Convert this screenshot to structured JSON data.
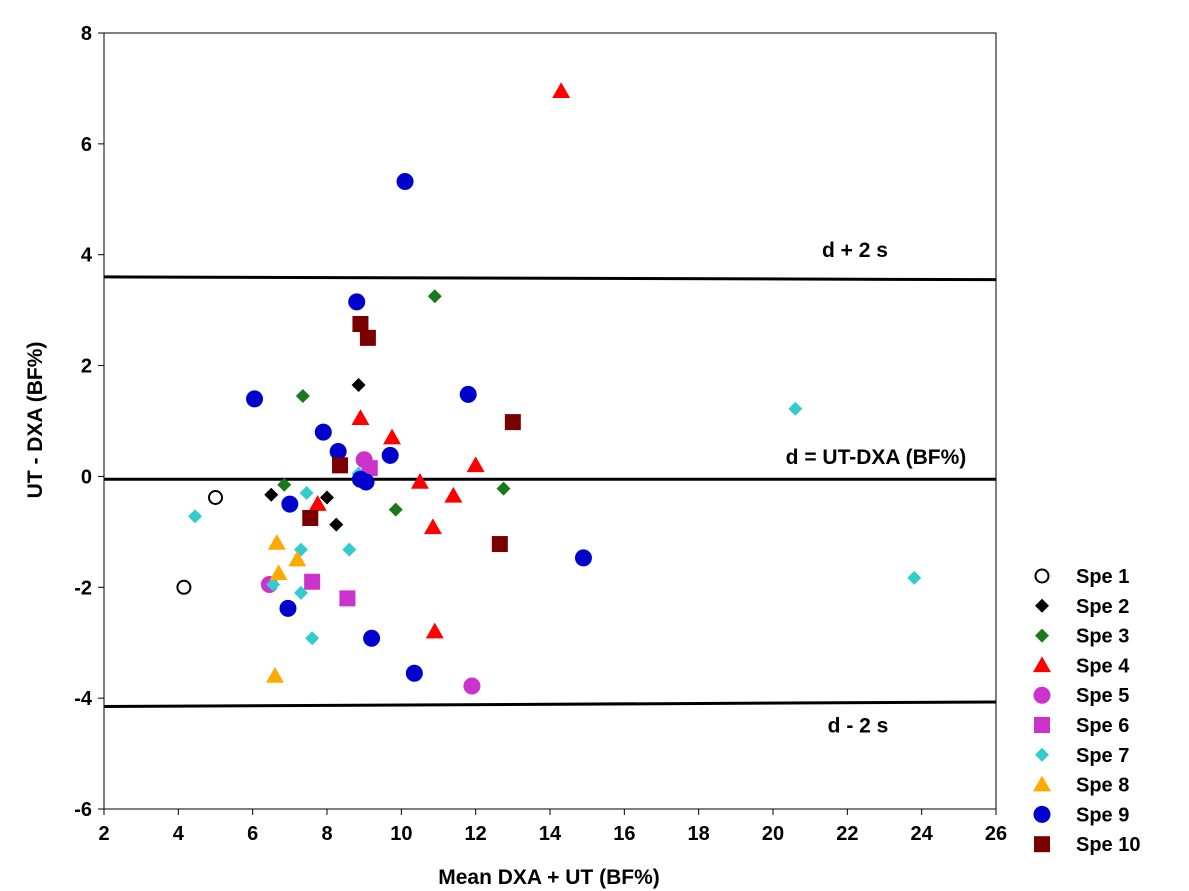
{
  "chart_data": {
    "type": "scatter",
    "title": "",
    "xlabel": "Mean DXA + UT (BF%)",
    "ylabel": "UT - DXA (BF%)",
    "xlim": [
      2,
      26
    ],
    "ylim": [
      -6,
      8
    ],
    "xticks": [
      2,
      4,
      6,
      8,
      10,
      12,
      14,
      16,
      18,
      20,
      22,
      24,
      26
    ],
    "yticks": [
      -6,
      -4,
      -2,
      0,
      2,
      4,
      6,
      8
    ],
    "grid": false,
    "legend_position": "bottom-right, outside plot",
    "reference_lines": [
      {
        "label": "d + 2 s",
        "x": [
          2,
          26
        ],
        "y": [
          3.6,
          3.55
        ]
      },
      {
        "label": "d = UT-DXA (BF%)",
        "x": [
          2,
          26
        ],
        "y": [
          -0.05,
          -0.05
        ]
      },
      {
        "label": "d - 2 s",
        "x": [
          2,
          26
        ],
        "y": [
          -4.15,
          -4.07
        ]
      }
    ],
    "series": [
      {
        "name": "Spe 1",
        "marker": "circle-open",
        "color": "#000000",
        "points": [
          [
            5.0,
            -0.38
          ],
          [
            4.15,
            -2.0
          ]
        ]
      },
      {
        "name": "Spe 2",
        "marker": "diamond",
        "color": "#000000",
        "points": [
          [
            8.85,
            1.65
          ],
          [
            6.5,
            -0.33
          ],
          [
            8.0,
            -0.38
          ],
          [
            8.25,
            -0.87
          ]
        ]
      },
      {
        "name": "Spe 3",
        "marker": "diamond",
        "color": "#1a7a1a",
        "points": [
          [
            10.9,
            3.25
          ],
          [
            7.35,
            1.45
          ],
          [
            6.85,
            -0.15
          ],
          [
            9.85,
            -0.6
          ],
          [
            12.75,
            -0.22
          ]
        ]
      },
      {
        "name": "Spe 4",
        "marker": "triangle",
        "color": "#ff0000",
        "points": [
          [
            14.3,
            6.95
          ],
          [
            8.9,
            1.05
          ],
          [
            9.75,
            0.7
          ],
          [
            7.75,
            -0.5
          ],
          [
            10.5,
            -0.1
          ],
          [
            11.4,
            -0.35
          ],
          [
            12.0,
            0.2
          ],
          [
            10.85,
            -0.92
          ],
          [
            10.9,
            -2.8
          ]
        ]
      },
      {
        "name": "Spe 5",
        "marker": "circle",
        "color": "#cc33cc",
        "points": [
          [
            9.0,
            0.3
          ],
          [
            6.45,
            -1.95
          ],
          [
            11.9,
            -3.78
          ]
        ]
      },
      {
        "name": "Spe 6",
        "marker": "square",
        "color": "#cc33cc",
        "points": [
          [
            9.15,
            0.15
          ],
          [
            7.6,
            -1.9
          ],
          [
            8.55,
            -2.2
          ]
        ]
      },
      {
        "name": "Spe 7",
        "marker": "diamond",
        "color": "#33cccc",
        "points": [
          [
            4.45,
            -0.72
          ],
          [
            7.45,
            -0.3
          ],
          [
            7.3,
            -1.32
          ],
          [
            8.6,
            -1.32
          ],
          [
            7.3,
            -2.1
          ],
          [
            7.6,
            -2.92
          ],
          [
            6.55,
            -1.95
          ],
          [
            20.6,
            1.22
          ],
          [
            23.8,
            -1.83
          ],
          [
            8.85,
            0.05
          ]
        ]
      },
      {
        "name": "Spe 8",
        "marker": "triangle",
        "color": "#ffaa00",
        "points": [
          [
            6.65,
            -1.2
          ],
          [
            7.2,
            -1.5
          ],
          [
            6.7,
            -1.75
          ],
          [
            6.6,
            -3.6
          ]
        ]
      },
      {
        "name": "Spe 9",
        "marker": "circle",
        "color": "#0000cc",
        "points": [
          [
            10.1,
            5.32
          ],
          [
            8.8,
            3.15
          ],
          [
            6.05,
            1.4
          ],
          [
            11.8,
            1.48
          ],
          [
            7.9,
            0.8
          ],
          [
            8.3,
            0.45
          ],
          [
            9.7,
            0.38
          ],
          [
            8.9,
            -0.05
          ],
          [
            9.05,
            -0.1
          ],
          [
            7.0,
            -0.5
          ],
          [
            6.95,
            -2.38
          ],
          [
            9.2,
            -2.92
          ],
          [
            10.35,
            -3.55
          ],
          [
            14.9,
            -1.47
          ]
        ]
      },
      {
        "name": "Spe 10",
        "marker": "square",
        "color": "#7a0000",
        "points": [
          [
            8.9,
            2.75
          ],
          [
            9.1,
            2.5
          ],
          [
            13.0,
            0.98
          ],
          [
            8.35,
            0.2
          ],
          [
            7.55,
            -0.75
          ],
          [
            12.65,
            -1.22
          ]
        ]
      }
    ]
  }
}
